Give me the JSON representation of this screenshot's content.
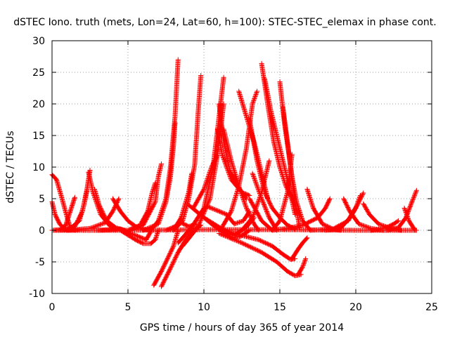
{
  "chart_data": {
    "type": "scatter",
    "title": "dSTEC Iono. truth (mets, Lon=24, Lat=60, h=100): STEC-STEC_elemax in phase cont.",
    "xlabel": "GPS time / hours of day 365 of year 2014",
    "ylabel": "dSTEC  / TECUs",
    "xlim": [
      0,
      25
    ],
    "ylim": [
      -10,
      30
    ],
    "x_ticks": [
      "0",
      "5",
      "10",
      "15",
      "20",
      "25"
    ],
    "y_ticks": [
      "-10",
      "-5",
      "0",
      "5",
      "10",
      "15",
      "20",
      "25",
      "30"
    ],
    "grid": true,
    "marker": "+",
    "color": "#ff0000",
    "series": [
      {
        "x": [
          0.0,
          0.3,
          0.6,
          1.0,
          1.2,
          1.5
        ],
        "y": [
          8.8,
          8.0,
          5.5,
          2.0,
          0.5,
          0.0
        ]
      },
      {
        "x": [
          0.0,
          0.2,
          0.5,
          0.8,
          1.1
        ],
        "y": [
          4.5,
          2.5,
          1.0,
          0.3,
          0.0
        ]
      },
      {
        "x": [
          0.0,
          0.5,
          0.9,
          1.2,
          1.5
        ],
        "y": [
          0.0,
          0.1,
          0.8,
          3.0,
          5.2
        ]
      },
      {
        "x": [
          0.5,
          1.2,
          1.8,
          2.1,
          2.3
        ],
        "y": [
          0.0,
          0.3,
          1.5,
          4.0,
          6.2
        ]
      },
      {
        "x": [
          0.8,
          1.5,
          2.0,
          2.3,
          2.5
        ],
        "y": [
          0.0,
          0.6,
          3.0,
          6.5,
          9.5
        ]
      },
      {
        "x": [
          2.4,
          2.7,
          3.2,
          3.8,
          4.2
        ],
        "y": [
          9.2,
          6.0,
          2.5,
          0.7,
          0.2
        ]
      },
      {
        "x": [
          2.8,
          3.1,
          3.6,
          4.2,
          4.8
        ],
        "y": [
          6.5,
          4.0,
          1.5,
          0.4,
          0.0
        ]
      },
      {
        "x": [
          1.0,
          2.5,
          3.5,
          4.0,
          4.4
        ],
        "y": [
          0.0,
          0.3,
          1.2,
          3.0,
          5.0
        ]
      },
      {
        "x": [
          4.0,
          4.5,
          5.0,
          5.5,
          6.0,
          6.5
        ],
        "y": [
          5.0,
          3.0,
          1.5,
          0.6,
          0.2,
          0.0
        ]
      },
      {
        "x": [
          3.0,
          4.5,
          5.5,
          6.2,
          6.5
        ],
        "y": [
          0.0,
          0.2,
          -0.8,
          -1.5,
          -0.2
        ]
      },
      {
        "x": [
          4.5,
          5.5,
          6.0,
          6.5,
          6.8,
          7.0
        ],
        "y": [
          0.0,
          -1.5,
          -2.1,
          -2.1,
          -1.5,
          0.0
        ]
      },
      {
        "x": [
          5.0,
          5.8,
          6.3,
          6.6,
          6.8
        ],
        "y": [
          0.0,
          0.8,
          3.0,
          6.0,
          7.5
        ]
      },
      {
        "x": [
          5.0,
          6.0,
          6.8,
          7.0,
          7.2
        ],
        "y": [
          0.0,
          0.8,
          4.5,
          8.5,
          10.5
        ]
      },
      {
        "x": [
          6.7,
          7.2,
          7.6,
          8.0,
          8.3
        ],
        "y": [
          -8.7,
          -6.5,
          -4.5,
          -2.5,
          0.0
        ]
      },
      {
        "x": [
          7.2,
          7.8,
          8.3,
          8.8,
          9.3,
          9.8
        ],
        "y": [
          -8.9,
          -6.0,
          -3.5,
          -1.5,
          0.0,
          0.8
        ]
      },
      {
        "x": [
          6.5,
          7.0,
          7.5,
          7.8,
          8.1,
          8.3
        ],
        "y": [
          0.0,
          1.5,
          5.0,
          10.0,
          18.0,
          27.0
        ]
      },
      {
        "x": [
          6.0,
          7.0,
          7.5,
          7.8,
          8.0,
          8.1
        ],
        "y": [
          0.0,
          1.0,
          4.5,
          8.5,
          13.5,
          17.0
        ]
      },
      {
        "x": [
          7.5,
          8.0,
          8.5,
          9.0,
          9.5
        ],
        "y": [
          0.0,
          0.5,
          1.2,
          0.6,
          1.0
        ]
      },
      {
        "x": [
          8.0,
          8.6,
          9.0,
          9.4,
          9.6,
          9.8
        ],
        "y": [
          0.0,
          1.5,
          5.0,
          10.5,
          18.0,
          24.5
        ]
      },
      {
        "x": [
          8.0,
          8.5,
          9.0,
          9.2
        ],
        "y": [
          0.0,
          2.0,
          6.0,
          9.0
        ]
      },
      {
        "x": [
          8.3,
          9.2,
          10.0,
          10.6,
          11.0,
          11.3
        ],
        "y": [
          -2.0,
          0.5,
          3.5,
          10.0,
          18.0,
          24.2
        ]
      },
      {
        "x": [
          8.6,
          9.6,
          10.4,
          10.9,
          11.3
        ],
        "y": [
          -2.5,
          0.5,
          5.0,
          12.0,
          20.0
        ]
      },
      {
        "x": [
          9.3,
          10.0,
          10.5,
          10.9
        ],
        "y": [
          3.5,
          6.5,
          10.0,
          12.0
        ]
      },
      {
        "x": [
          11.0,
          11.3,
          11.7,
          12.2,
          12.8
        ],
        "y": [
          20.0,
          14.0,
          9.5,
          7.0,
          5.0
        ]
      },
      {
        "x": [
          10.9,
          11.2,
          11.8,
          12.5,
          13.0
        ],
        "y": [
          16.0,
          12.0,
          8.0,
          6.0,
          5.5
        ]
      },
      {
        "x": [
          11.3,
          11.8,
          12.3,
          12.8,
          13.3,
          13.6
        ],
        "y": [
          16.0,
          11.0,
          7.0,
          3.5,
          1.0,
          0.0
        ]
      },
      {
        "x": [
          9.5,
          10.5,
          11.2,
          11.8,
          12.4,
          13.0
        ],
        "y": [
          3.0,
          1.0,
          -0.2,
          -1.2,
          -1.0,
          0.0
        ]
      },
      {
        "x": [
          9.0,
          10.0,
          11.0,
          12.0,
          12.8,
          13.3
        ],
        "y": [
          4.0,
          2.0,
          0.5,
          -0.8,
          0.5,
          2.0
        ]
      },
      {
        "x": [
          10.2,
          11.5,
          12.0,
          12.6,
          13.0
        ],
        "y": [
          3.8,
          2.5,
          1.0,
          1.5,
          3.0
        ]
      },
      {
        "x": [
          11.2,
          11.8,
          12.3,
          12.8,
          13.2,
          13.5
        ],
        "y": [
          0.5,
          3.0,
          7.0,
          13.0,
          20.0,
          22.0
        ]
      },
      {
        "x": [
          12.3,
          12.8,
          13.3,
          13.8,
          14.2
        ],
        "y": [
          22.0,
          18.0,
          14.0,
          9.0,
          5.0
        ]
      },
      {
        "x": [
          13.0,
          13.5,
          14.0,
          14.5,
          15.0,
          15.5,
          16.0
        ],
        "y": [
          17.5,
          11.0,
          6.0,
          3.5,
          2.0,
          0.8,
          0.2
        ]
      },
      {
        "x": [
          13.8,
          14.2,
          14.6,
          15.0,
          15.4,
          16.0
        ],
        "y": [
          26.4,
          20.0,
          14.0,
          10.0,
          7.0,
          4.0
        ]
      },
      {
        "x": [
          14.0,
          14.4,
          14.8,
          15.2,
          15.6,
          16.0
        ],
        "y": [
          24.0,
          19.0,
          15.0,
          11.0,
          7.0,
          2.5
        ]
      },
      {
        "x": [
          15.0,
          15.3,
          15.6,
          15.8,
          16.0,
          16.3
        ],
        "y": [
          23.5,
          17.0,
          12.0,
          8.0,
          4.5,
          0.5
        ]
      },
      {
        "x": [
          15.2,
          15.5,
          15.8,
          16.1,
          16.5,
          17.0
        ],
        "y": [
          19.5,
          14.0,
          8.5,
          4.5,
          1.5,
          0.0
        ]
      },
      {
        "x": [
          13.0,
          13.8,
          14.5,
          15.0,
          15.5,
          15.8
        ],
        "y": [
          5.0,
          1.5,
          0.0,
          1.5,
          6.0,
          12.0
        ]
      },
      {
        "x": [
          13.2,
          13.8,
          14.3,
          14.8
        ],
        "y": [
          9.0,
          5.0,
          2.0,
          0.0
        ]
      },
      {
        "x": [
          12.5,
          13.2,
          13.8,
          14.3
        ],
        "y": [
          0.0,
          2.0,
          6.0,
          11.0
        ]
      },
      {
        "x": [
          11.5,
          12.8,
          13.6,
          14.5,
          15.2,
          15.7,
          16.0
        ],
        "y": [
          -0.2,
          -1.0,
          -1.5,
          -2.5,
          -3.8,
          -4.6,
          -4.5
        ]
      },
      {
        "x": [
          11.0,
          12.5,
          13.8,
          14.8,
          15.5,
          16.0,
          16.4
        ],
        "y": [
          -0.5,
          -2.0,
          -3.5,
          -5.0,
          -6.5,
          -7.2,
          -7.0
        ]
      },
      {
        "x": [
          15.8,
          16.2,
          16.5,
          16.8
        ],
        "y": [
          -4.5,
          -3.0,
          -2.0,
          -1.2
        ]
      },
      {
        "x": [
          16.2,
          16.5,
          16.7
        ],
        "y": [
          -7.0,
          -5.8,
          -4.5
        ]
      },
      {
        "x": [
          14.5,
          15.5,
          16.5,
          17.5,
          18.0,
          18.3
        ],
        "y": [
          0.0,
          0.3,
          0.8,
          2.0,
          3.5,
          5.0
        ]
      },
      {
        "x": [
          16.8,
          17.2,
          17.8,
          18.5,
          19.0
        ],
        "y": [
          6.5,
          3.5,
          1.0,
          0.2,
          0.0
        ]
      },
      {
        "x": [
          17.0,
          18.5,
          19.5,
          20.0,
          20.3
        ],
        "y": [
          0.0,
          0.2,
          1.5,
          3.5,
          5.5
        ]
      },
      {
        "x": [
          19.2,
          19.6,
          20.2,
          21.0,
          21.8
        ],
        "y": [
          5.0,
          3.0,
          1.0,
          0.3,
          0.0
        ]
      },
      {
        "x": [
          18.0,
          19.0,
          19.6,
          20.1,
          20.5
        ],
        "y": [
          0.0,
          0.3,
          2.0,
          4.0,
          5.9
        ]
      },
      {
        "x": [
          20.5,
          20.9,
          21.5,
          22.3,
          23.0
        ],
        "y": [
          4.2,
          2.5,
          1.0,
          0.3,
          0.0
        ]
      },
      {
        "x": [
          21.0,
          22.0,
          22.5,
          22.8
        ],
        "y": [
          0.0,
          0.4,
          1.0,
          1.5
        ]
      },
      {
        "x": [
          22.0,
          22.8,
          23.3,
          23.7,
          24.0
        ],
        "y": [
          0.0,
          0.4,
          2.0,
          4.5,
          6.3
        ]
      },
      {
        "x": [
          23.2,
          23.5,
          23.9
        ],
        "y": [
          3.5,
          1.5,
          0.0
        ]
      },
      {
        "x": [
          0.0,
          5.0,
          10.0,
          15.0,
          20.0,
          24.0
        ],
        "y": [
          0.0,
          0.0,
          0.1,
          0.1,
          0.0,
          0.0
        ]
      }
    ]
  }
}
